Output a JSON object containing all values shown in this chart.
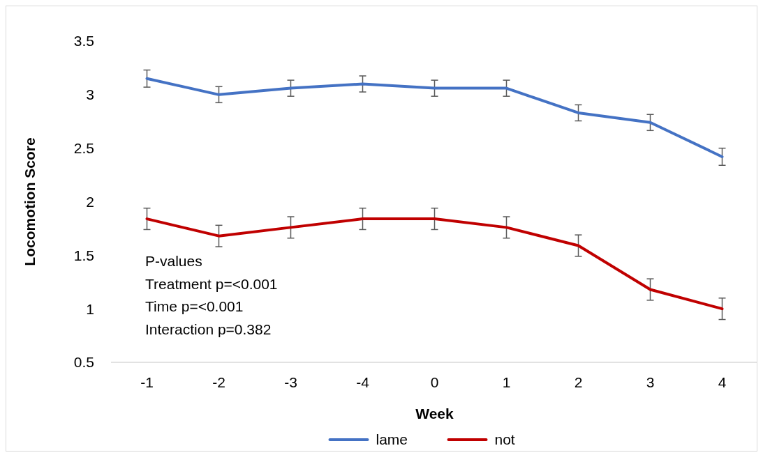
{
  "chart_data": {
    "type": "line",
    "xlabel": "Week",
    "ylabel": "Locomotion Score",
    "categories": [
      "-1",
      "-2",
      "-3",
      "-4",
      "0",
      "1",
      "2",
      "3",
      "4"
    ],
    "series": [
      {
        "name": "lame",
        "color": "#4472c4",
        "values": [
          3.15,
          3.0,
          3.06,
          3.1,
          3.06,
          3.06,
          2.83,
          2.74,
          2.42
        ],
        "errors": [
          0.08,
          0.075,
          0.075,
          0.075,
          0.075,
          0.075,
          0.075,
          0.075,
          0.08
        ]
      },
      {
        "name": "not",
        "color": "#c00000",
        "values": [
          1.84,
          1.68,
          1.76,
          1.84,
          1.84,
          1.76,
          1.59,
          1.18,
          1.0
        ],
        "errors": [
          0.1,
          0.1,
          0.1,
          0.1,
          0.1,
          0.1,
          0.1,
          0.1,
          0.1
        ]
      }
    ],
    "ylim": [
      0.5,
      3.5
    ],
    "yticks": [
      0.5,
      1,
      1.5,
      2,
      2.5,
      3,
      3.5
    ],
    "annotations": [
      "P-values",
      "Treatment p=<0.001",
      "Time p=<0.001",
      "Interaction p=0.382"
    ],
    "grid": false,
    "legend": "bottom",
    "marker": "none",
    "line_style": "solid"
  }
}
